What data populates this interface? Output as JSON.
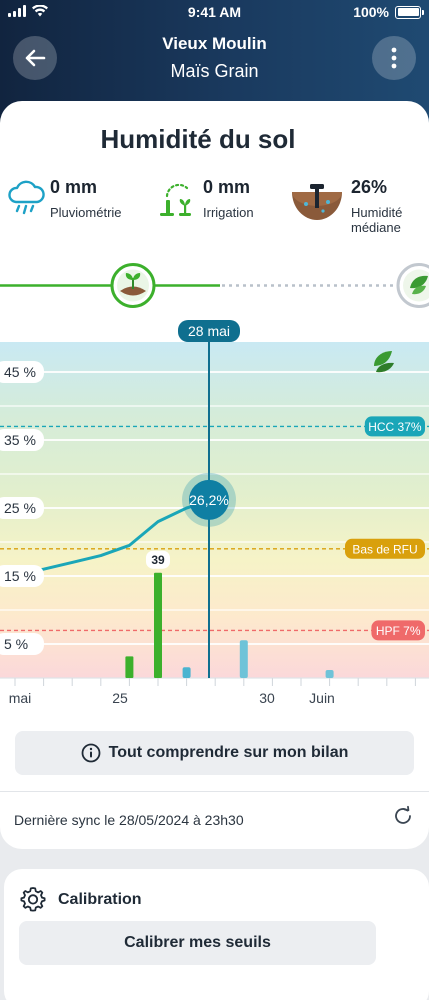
{
  "status_bar": {
    "time": "9:41 AM",
    "battery": "100%"
  },
  "nav": {
    "title": "Vieux Moulin",
    "subtitle": "Maïs Grain"
  },
  "page": {
    "title": "Humidité du sol"
  },
  "stats": [
    {
      "value": "0 mm",
      "label": "Pluviométrie",
      "icon": "rain-cloud-icon"
    },
    {
      "value": "0 mm",
      "label": "Irrigation",
      "icon": "sprinkler-icon"
    },
    {
      "value": "26%",
      "label_line1": "Humidité",
      "label_line2": "médiane",
      "icon": "soil-probe-icon"
    }
  ],
  "timeline": {
    "stage_icons": [
      "seedling-stage-icon",
      "leaf-stage-icon"
    ]
  },
  "chart_data": {
    "type": "line",
    "selected_date": "28 mai",
    "selected_value_label": "26,2%",
    "y_ticks": [
      "45 %",
      "35 %",
      "25 %",
      "15 %",
      "5 %"
    ],
    "y_tick_values": [
      45,
      35,
      25,
      15,
      5
    ],
    "x_ticks": [
      "mai",
      "25",
      "30",
      "Juin"
    ],
    "thresholds": [
      {
        "name": "HCC 37%",
        "value": 37,
        "color": "#1aa6b8"
      },
      {
        "name": "Bas de RFU",
        "value": 19,
        "color": "#d9a00c"
      },
      {
        "name": "HPF 7%",
        "value": 7,
        "color": "#ef6a6a"
      }
    ],
    "humidity_series": {
      "x_days": [
        21,
        22,
        23,
        24,
        25,
        26,
        27,
        28
      ],
      "values": [
        15.0,
        16.0,
        17.0,
        18.0,
        19.5,
        23.0,
        25.0,
        26.2
      ]
    },
    "irrigation_bars": [
      {
        "day": 25,
        "value": 8,
        "color": "#3cb02c"
      },
      {
        "day": 26,
        "value": 39,
        "color": "#3cb02c",
        "label": "39"
      }
    ],
    "rain_bars": [
      {
        "day": 27,
        "value": 2,
        "color": "#4bb4d0"
      },
      {
        "day": 29,
        "value": 7,
        "color": "#6fc3d8"
      },
      {
        "day": 32,
        "value": 1,
        "color": "#6fc3d8"
      }
    ]
  },
  "actions": {
    "info_button": "Tout comprendre sur mon bilan",
    "sync_text": "Dernière sync le 28/05/2024 à 23h30"
  },
  "calibration": {
    "title": "Calibration",
    "button": "Calibrer mes seuils"
  },
  "colors": {
    "header": "#1a3a5f",
    "accent_teal": "#0f6f8f",
    "irrigation_green": "#3cb02c"
  }
}
